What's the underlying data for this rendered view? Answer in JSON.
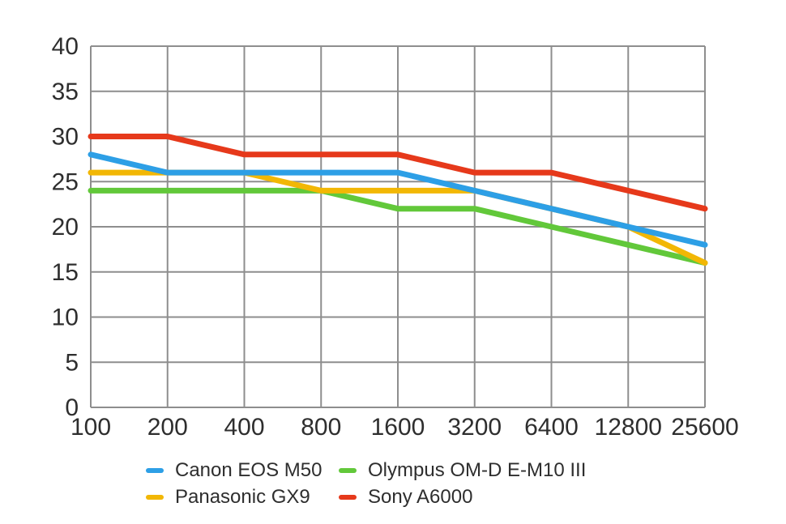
{
  "chart_data": {
    "type": "line",
    "title": "",
    "xlabel": "",
    "ylabel": "",
    "x_tick_labels": [
      "100",
      "200",
      "400",
      "800",
      "1600",
      "3200",
      "6400",
      "12800",
      "25600"
    ],
    "y_tick_labels": [
      "0",
      "5",
      "10",
      "15",
      "20",
      "25",
      "30",
      "35",
      "40"
    ],
    "ylim": [
      0,
      40
    ],
    "grid": true,
    "legend_position": "bottom",
    "axis_color": "#8e8e8e",
    "tick_label_color": "#2e2e2e",
    "line_width": 7,
    "series": [
      {
        "name": "Canon EOS M50",
        "color": "#2d9fe6",
        "values": [
          28,
          26,
          26,
          26,
          26,
          24,
          22,
          20,
          18
        ]
      },
      {
        "name": "Panasonic GX9",
        "color": "#f2b705",
        "values": [
          26,
          26,
          26,
          24,
          24,
          24,
          22,
          20,
          16
        ]
      },
      {
        "name": "Olympus OM-D E-M10 III",
        "color": "#62c83a",
        "values": [
          24,
          24,
          24,
          24,
          22,
          22,
          20,
          18,
          16
        ]
      },
      {
        "name": "Sony A6000",
        "color": "#e6391b",
        "values": [
          30,
          30,
          28,
          28,
          28,
          26,
          26,
          24,
          22
        ]
      }
    ],
    "draw_order": [
      2,
      1,
      0,
      3
    ]
  }
}
